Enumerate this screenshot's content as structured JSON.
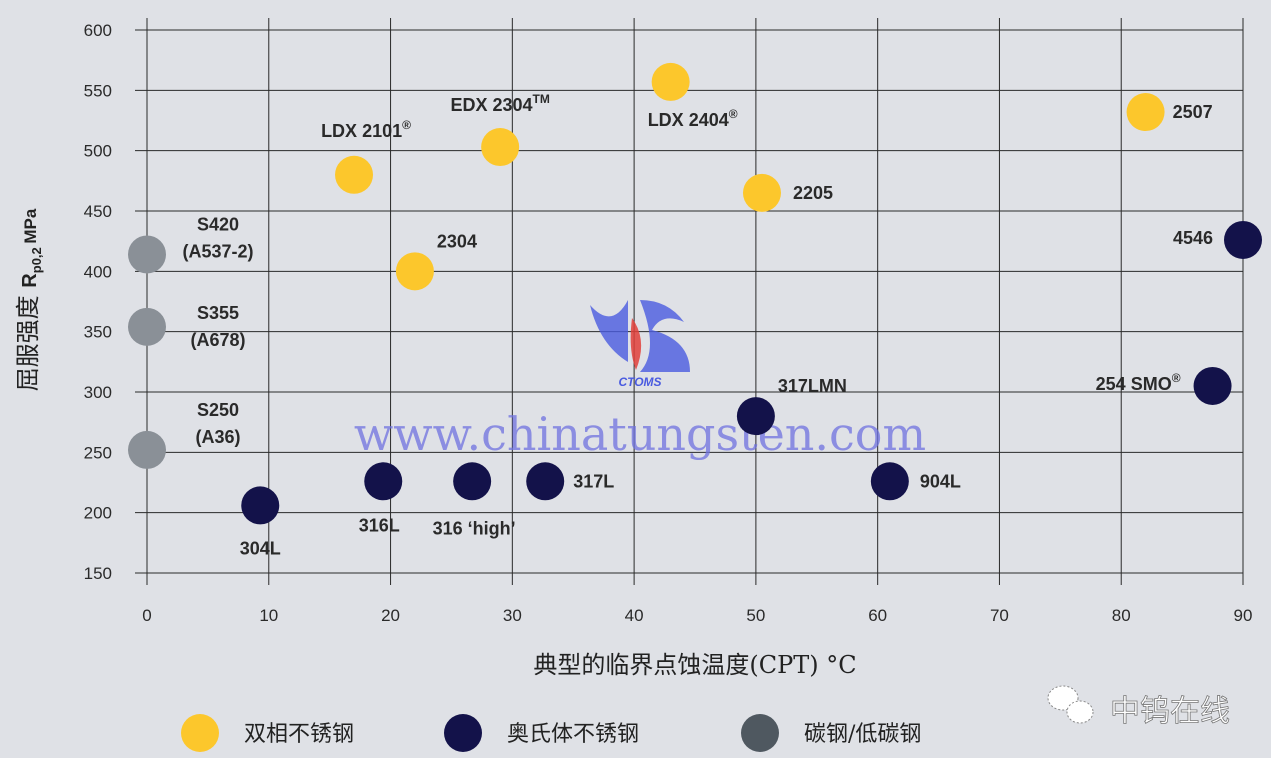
{
  "chart_data": {
    "type": "scatter",
    "title": "",
    "xlabel": "典型的临界点蚀温度(CPT) °C",
    "ylabel_cn": "屈服强度",
    "ylabel_sym": "R",
    "ylabel_sub": "p0,2",
    "ylabel_unit": "MPa",
    "xlim": [
      0,
      90
    ],
    "ylim": [
      150,
      600
    ],
    "xticks": [
      0,
      10,
      20,
      30,
      40,
      50,
      60,
      70,
      80,
      90
    ],
    "yticks": [
      150,
      200,
      250,
      300,
      350,
      400,
      450,
      500,
      550,
      600
    ],
    "grid": true,
    "legend_placement": "bottom",
    "series": [
      {
        "name": "双相不锈钢",
        "color": "#fcc72c",
        "points": [
          {
            "x": 17,
            "y": 480,
            "label": "LDX 2101",
            "sup": "®"
          },
          {
            "x": 29,
            "y": 503,
            "label": "EDX 2304",
            "sup": "TM"
          },
          {
            "x": 43,
            "y": 557,
            "label": "LDX 2404",
            "sup": "®"
          },
          {
            "x": 22,
            "y": 400,
            "label": "2304",
            "sup": ""
          },
          {
            "x": 50.5,
            "y": 465,
            "label": "2205",
            "sup": ""
          },
          {
            "x": 82,
            "y": 532,
            "label": "2507",
            "sup": ""
          }
        ]
      },
      {
        "name": "奥氏体不锈钢",
        "color": "#13124a",
        "points": [
          {
            "x": 90,
            "y": 426,
            "label": "4546",
            "sup": ""
          },
          {
            "x": 87.5,
            "y": 305,
            "label": "254 SMO",
            "sup": "®"
          },
          {
            "x": 50,
            "y": 280,
            "label": "317LMN",
            "sup": ""
          },
          {
            "x": 61,
            "y": 226,
            "label": "904L",
            "sup": ""
          },
          {
            "x": 32.7,
            "y": 226,
            "label": "317L",
            "sup": ""
          },
          {
            "x": 26.7,
            "y": 226,
            "label": "316 ‘high’",
            "sup": ""
          },
          {
            "x": 19.4,
            "y": 226,
            "label": "316L",
            "sup": ""
          },
          {
            "x": 9.3,
            "y": 206,
            "label": "304L",
            "sup": ""
          }
        ]
      },
      {
        "name": "碳钢/低碳钢",
        "color": "#8a9097",
        "legend_color": "#4f5860",
        "points": [
          {
            "x": 0,
            "y": 414,
            "label": "S420",
            "label2": "(A537-2)",
            "sup": ""
          },
          {
            "x": 0,
            "y": 354,
            "label": "S355",
            "label2": "(A678)",
            "sup": ""
          },
          {
            "x": 0,
            "y": 252,
            "label": "S250",
            "label2": "(A36)",
            "sup": ""
          }
        ]
      }
    ]
  },
  "watermark": {
    "url": "www.chinatungsten.com",
    "logo": "CTOMS",
    "brand": "中钨在线"
  }
}
